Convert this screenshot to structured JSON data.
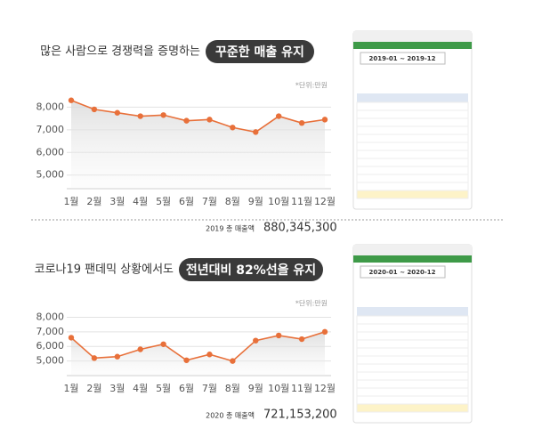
{
  "chart_data": [
    {
      "type": "line",
      "title": "많은 사람으로 경쟁력을 증명하는",
      "highlight": "꾸준한 매출 유지",
      "unit_note": "*단위:만원",
      "total_label": "2019 총 매출액",
      "total_value": "880,345,300",
      "period": "2019-01 ~ 2019-12",
      "categories": [
        "1월",
        "2월",
        "3월",
        "4월",
        "5월",
        "6월",
        "7월",
        "8월",
        "9월",
        "10월",
        "11월",
        "12월"
      ],
      "values": [
        8300,
        7900,
        7750,
        7600,
        7650,
        7400,
        7450,
        7100,
        6900,
        7600,
        7300,
        7450
      ],
      "color": "#e8703a",
      "ylim": [
        4400,
        8800
      ],
      "yticks": [
        {
          "value": 5000,
          "label": "5,000"
        },
        {
          "value": 6000,
          "label": "6,000"
        },
        {
          "value": 7000,
          "label": "7,000"
        },
        {
          "value": 8000,
          "label": "8,000"
        }
      ],
      "grid": true
    },
    {
      "type": "line",
      "title": "코로나19 팬데믹 상황에서도",
      "highlight": "전년대비 82%선을 유지",
      "unit_note": "*단위:만원",
      "total_label": "2020 총 매출액",
      "total_value": "721,153,200",
      "period": "2020-01 ~ 2020-12",
      "categories": [
        "1월",
        "2월",
        "3월",
        "4월",
        "5월",
        "6월",
        "7월",
        "8월",
        "9월",
        "10월",
        "11월",
        "12월"
      ],
      "values": [
        6600,
        5200,
        5300,
        5800,
        6150,
        5050,
        5450,
        5000,
        6400,
        6750,
        6500,
        7000
      ],
      "color": "#e8703a",
      "ylim": [
        4000,
        8700
      ],
      "yticks": [
        {
          "value": 5000,
          "label": "5,000"
        },
        {
          "value": 6000,
          "label": "6,000"
        },
        {
          "value": 7000,
          "label": "7,000"
        },
        {
          "value": 8000,
          "label": "8,000"
        }
      ],
      "grid": true
    }
  ]
}
